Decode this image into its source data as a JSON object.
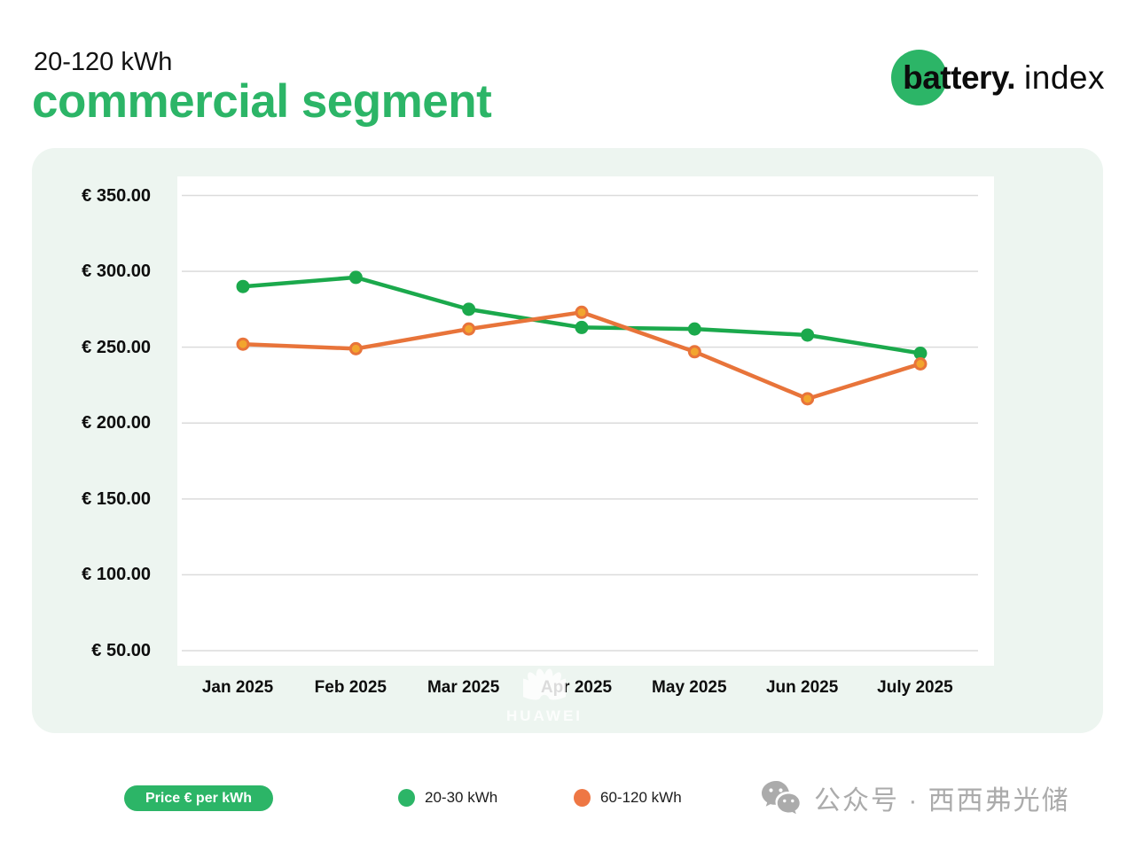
{
  "header": {
    "range_label": "20-120 kWh",
    "title": "commercial segment",
    "brand_bold": "battery.",
    "brand_light": "index"
  },
  "colors": {
    "accent_green": "#2CB567",
    "line_green": "#1BA94C",
    "line_orange": "#E8743A",
    "marker_orange_fill": "#F2A52E",
    "panel_bg": "#EDF5F0",
    "grid": "#DBDBDB",
    "wechat_gray": "#ABABAB"
  },
  "chart_data": {
    "type": "line",
    "title": "commercial segment 20-120 kWh price index",
    "categories": [
      "Jan 2025",
      "Feb 2025",
      "Mar 2025",
      "Apr 2025",
      "May 2025",
      "Jun 2025",
      "July 2025"
    ],
    "series": [
      {
        "name": "20-30 kWh",
        "color": "#1BA94C",
        "marker_fill": "#1BA94C",
        "marker_stroke": "#1BA94C",
        "values": [
          290,
          296,
          275,
          263,
          262,
          258,
          246
        ]
      },
      {
        "name": "60-120 kWh",
        "color": "#E8743A",
        "marker_fill": "#F2A52E",
        "marker_stroke": "#E8743A",
        "values": [
          252,
          249,
          262,
          273,
          247,
          216,
          239
        ]
      }
    ],
    "xlabel": "",
    "ylabel": "Price € per kWh",
    "ylim": [
      50,
      350
    ],
    "y_ticks": [
      350,
      300,
      250,
      200,
      150,
      100,
      50
    ],
    "y_tick_labels": [
      "€ 350.00",
      "€ 300.00",
      "€ 250.00",
      "€ 200.00",
      "€ 150.00",
      "€ 100.00",
      "€ 50.00"
    ],
    "grid": true,
    "legend_position": "bottom"
  },
  "watermark": {
    "brand": "HUAWEI"
  },
  "footer": {
    "axis_pill": "Price € per kWh",
    "legend": [
      {
        "label": "20-30 kWh",
        "color": "#2CB567"
      },
      {
        "label": "60-120 kWh",
        "color": "#EE7744"
      }
    ],
    "wechat_text": "公众号 · 西西弗光储"
  }
}
